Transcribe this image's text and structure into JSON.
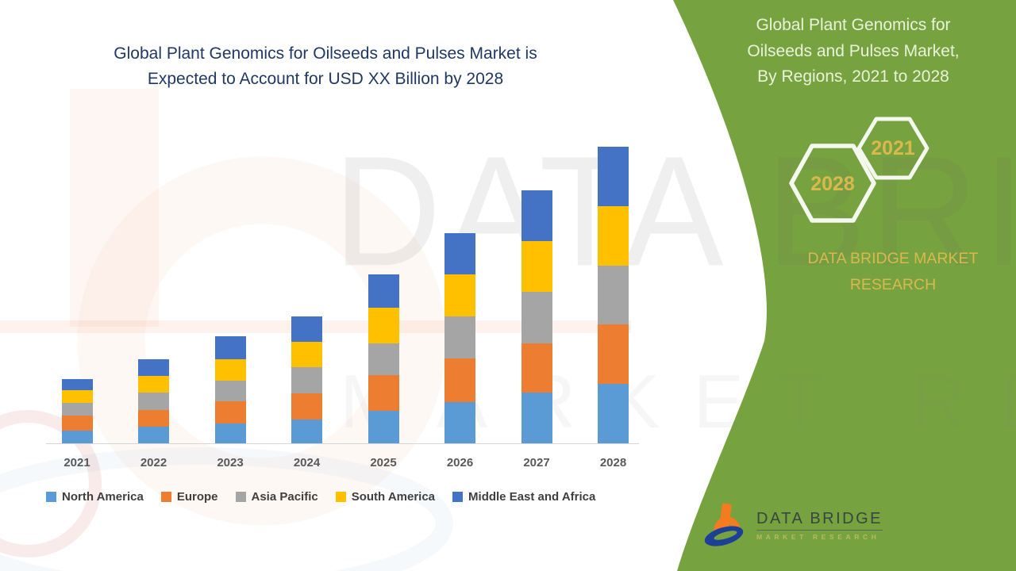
{
  "header": {
    "left_title_lines": [
      "Global Plant Genomics for Oilseeds and Pulses Market is",
      "Expected to Account for USD XX Billion by 2028"
    ]
  },
  "right_panel": {
    "bg_color": "#76A23F",
    "title_lines": [
      "Global Plant Genomics for",
      "Oilseeds and Pulses Market,",
      "By Regions, 2021 to 2028"
    ],
    "hexagons": [
      {
        "label": "2028"
      },
      {
        "label": "2021"
      }
    ],
    "accent_gold": "#D9B94D",
    "brand_lines": [
      "DATA BRIDGE MARKET",
      "RESEARCH"
    ]
  },
  "chart_data": {
    "type": "bar",
    "stacked": true,
    "title": "Global Plant Genomics for Oilseeds and Pulses Market is Expected to Account for USD XX Billion by 2028",
    "xlabel": "",
    "ylabel": "",
    "y_axis_visible": false,
    "ylim": [
      0,
      390
    ],
    "grid": false,
    "legend_position": "bottom",
    "categories": [
      "2021",
      "2022",
      "2023",
      "2024",
      "2025",
      "2026",
      "2027",
      "2028"
    ],
    "series": [
      {
        "name": "North America",
        "color": "#5B9BD5",
        "values": [
          16,
          21,
          25,
          30,
          41,
          52,
          64,
          75
        ]
      },
      {
        "name": "Europe",
        "color": "#ED7D31",
        "values": [
          19,
          21,
          28,
          33,
          45,
          55,
          62,
          75
        ]
      },
      {
        "name": "Asia Pacific",
        "color": "#A5A5A5",
        "values": [
          16,
          22,
          26,
          33,
          40,
          53,
          65,
          74
        ]
      },
      {
        "name": "South America",
        "color": "#FFC000",
        "values": [
          16,
          21,
          27,
          32,
          45,
          53,
          64,
          75
        ]
      },
      {
        "name": "Middle East and Africa",
        "color": "#4472C4",
        "values": [
          14,
          21,
          29,
          32,
          42,
          52,
          64,
          75
        ]
      }
    ],
    "stack_totals": [
      81,
      106,
      135,
      160,
      213,
      265,
      319,
      374
    ]
  },
  "watermark": {
    "line1": "DATA BRIDGE",
    "line2": "MARKET RESEARCH"
  },
  "footer_logo": {
    "brand": "DATA BRIDGE",
    "tagline": "MARKET RESEARCH"
  }
}
